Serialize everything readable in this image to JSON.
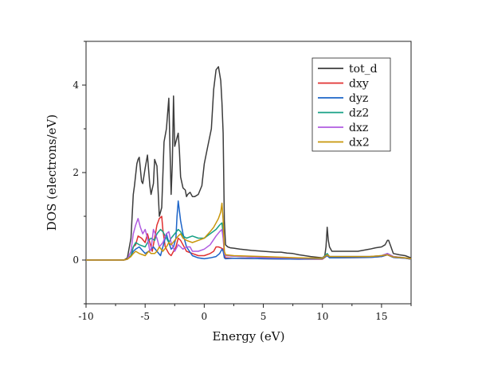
{
  "chart_data": {
    "type": "line",
    "title": "",
    "xlabel": "Energy (eV)",
    "ylabel": "DOS (electrons/eV)",
    "xlim": [
      -10,
      17.5
    ],
    "ylim": [
      -1,
      5
    ],
    "xticks": [
      -10,
      -5,
      0,
      5,
      10,
      15
    ],
    "yticks": [
      0,
      2,
      4
    ],
    "legend_position": "top-right",
    "series": [
      {
        "name": "tot_d",
        "color": "#3c3c3c",
        "x": [
          -10,
          -6.8,
          -6.5,
          -6.2,
          -6.0,
          -5.9,
          -5.7,
          -5.6,
          -5.5,
          -5.3,
          -5.2,
          -5.0,
          -4.8,
          -4.6,
          -4.5,
          -4.3,
          -4.2,
          -4.0,
          -3.8,
          -3.6,
          -3.4,
          -3.2,
          -3.0,
          -2.9,
          -2.8,
          -2.7,
          -2.6,
          -2.5,
          -2.3,
          -2.2,
          -2.1,
          -2.0,
          -1.8,
          -1.6,
          -1.5,
          -1.4,
          -1.2,
          -1.0,
          -0.8,
          -0.5,
          -0.2,
          0.0,
          0.3,
          0.6,
          0.8,
          1.0,
          1.2,
          1.4,
          1.5,
          1.6,
          1.7,
          1.8,
          1.9,
          2.0,
          2.2,
          2.5,
          3.0,
          4.0,
          5.0,
          6.0,
          6.5,
          7.0,
          7.5,
          8.0,
          9.0,
          10.0,
          10.2,
          10.3,
          10.4,
          10.5,
          10.6,
          10.8,
          11.0,
          12.0,
          13.0,
          14.0,
          14.5,
          15.0,
          15.3,
          15.5,
          15.6,
          15.8,
          16.0,
          16.5,
          17.0,
          17.5
        ],
        "values": [
          0,
          0,
          0.05,
          0.5,
          1.5,
          1.7,
          2.2,
          2.3,
          2.35,
          1.8,
          1.75,
          2.1,
          2.4,
          1.7,
          1.5,
          1.75,
          2.3,
          2.15,
          1.0,
          1.2,
          2.7,
          3.0,
          3.7,
          2.6,
          1.5,
          2.2,
          3.75,
          2.6,
          2.8,
          2.9,
          2.5,
          1.9,
          1.65,
          1.6,
          1.45,
          1.5,
          1.55,
          1.45,
          1.45,
          1.5,
          1.7,
          2.2,
          2.6,
          3.0,
          3.9,
          4.35,
          4.42,
          4.1,
          3.6,
          2.9,
          0.9,
          0.35,
          0.32,
          0.3,
          0.28,
          0.27,
          0.25,
          0.22,
          0.2,
          0.18,
          0.18,
          0.16,
          0.15,
          0.12,
          0.08,
          0.05,
          0.1,
          0.3,
          0.75,
          0.45,
          0.3,
          0.2,
          0.2,
          0.2,
          0.2,
          0.25,
          0.28,
          0.3,
          0.35,
          0.45,
          0.45,
          0.3,
          0.15,
          0.12,
          0.1,
          0.05
        ]
      },
      {
        "name": "dxy",
        "color": "#e03131",
        "x": [
          -10,
          -6.8,
          -6.5,
          -6.2,
          -6.0,
          -5.8,
          -5.6,
          -5.3,
          -5.0,
          -4.8,
          -4.6,
          -4.4,
          -4.2,
          -4.0,
          -3.8,
          -3.6,
          -3.5,
          -3.3,
          -3.0,
          -2.8,
          -2.6,
          -2.4,
          -2.2,
          -2.0,
          -1.5,
          -1.0,
          -0.5,
          0.0,
          0.5,
          0.8,
          1.0,
          1.2,
          1.4,
          1.6,
          1.7,
          1.8,
          2.5,
          5.0,
          8.0,
          10.0,
          10.4,
          10.6,
          11.0,
          14.0,
          15.0,
          15.5,
          16.0,
          17.0,
          17.5
        ],
        "values": [
          0,
          0,
          0.02,
          0.1,
          0.3,
          0.35,
          0.55,
          0.5,
          0.4,
          0.6,
          0.4,
          0.2,
          0.5,
          0.8,
          0.95,
          1.0,
          0.7,
          0.3,
          0.15,
          0.1,
          0.2,
          0.3,
          0.5,
          0.45,
          0.2,
          0.15,
          0.1,
          0.1,
          0.15,
          0.2,
          0.3,
          0.3,
          0.28,
          0.25,
          0.1,
          0.05,
          0.04,
          0.03,
          0.02,
          0.02,
          0.1,
          0.06,
          0.05,
          0.06,
          0.08,
          0.12,
          0.06,
          0.04,
          0.02
        ]
      },
      {
        "name": "dyz",
        "color": "#1c64c8",
        "x": [
          -10,
          -6.8,
          -6.5,
          -6.2,
          -6.0,
          -5.8,
          -5.5,
          -5.0,
          -4.7,
          -4.5,
          -4.3,
          -4.0,
          -3.7,
          -3.5,
          -3.2,
          -3.0,
          -2.8,
          -2.6,
          -2.4,
          -2.3,
          -2.2,
          -2.0,
          -1.8,
          -1.5,
          -1.0,
          -0.5,
          0.0,
          0.5,
          1.0,
          1.3,
          1.5,
          1.6,
          1.7,
          1.8,
          2.5,
          5.0,
          8.0,
          10.0,
          10.4,
          10.6,
          11.0,
          14.0,
          15.0,
          15.5,
          16.0,
          17.0,
          17.5
        ],
        "values": [
          0,
          0,
          0.02,
          0.1,
          0.2,
          0.25,
          0.3,
          0.15,
          0.2,
          0.25,
          0.3,
          0.2,
          0.1,
          0.3,
          0.6,
          0.4,
          0.25,
          0.3,
          0.5,
          1.0,
          1.35,
          0.9,
          0.6,
          0.3,
          0.1,
          0.05,
          0.03,
          0.05,
          0.08,
          0.15,
          0.25,
          0.2,
          0.05,
          0.03,
          0.04,
          0.03,
          0.02,
          0.03,
          0.1,
          0.05,
          0.05,
          0.06,
          0.08,
          0.12,
          0.06,
          0.04,
          0.02
        ]
      },
      {
        "name": "dz2",
        "color": "#16a085",
        "x": [
          -10,
          -6.8,
          -6.5,
          -6.2,
          -6.0,
          -5.8,
          -5.5,
          -5.0,
          -4.7,
          -4.5,
          -4.2,
          -4.0,
          -3.7,
          -3.5,
          -3.2,
          -3.0,
          -2.8,
          -2.5,
          -2.2,
          -2.0,
          -1.8,
          -1.5,
          -1.0,
          -0.5,
          0.0,
          0.5,
          1.0,
          1.3,
          1.5,
          1.6,
          1.7,
          1.8,
          2.5,
          5.0,
          8.0,
          10.0,
          10.4,
          10.6,
          11.0,
          14.0,
          15.0,
          15.5,
          16.0,
          17.0,
          17.5
        ],
        "values": [
          0,
          0,
          0.02,
          0.1,
          0.3,
          0.4,
          0.35,
          0.3,
          0.45,
          0.5,
          0.45,
          0.6,
          0.7,
          0.65,
          0.5,
          0.4,
          0.5,
          0.6,
          0.7,
          0.65,
          0.55,
          0.5,
          0.55,
          0.5,
          0.5,
          0.6,
          0.7,
          0.8,
          0.85,
          0.6,
          0.15,
          0.1,
          0.09,
          0.06,
          0.04,
          0.04,
          0.15,
          0.08,
          0.08,
          0.08,
          0.1,
          0.15,
          0.08,
          0.05,
          0.03
        ]
      },
      {
        "name": "dxz",
        "color": "#b05ce0",
        "x": [
          -10,
          -6.8,
          -6.5,
          -6.2,
          -6.0,
          -5.8,
          -5.6,
          -5.4,
          -5.2,
          -5.0,
          -4.8,
          -4.6,
          -4.5,
          -4.3,
          -4.0,
          -3.8,
          -3.5,
          -3.2,
          -3.0,
          -2.8,
          -2.5,
          -2.2,
          -2.0,
          -1.8,
          -1.5,
          -1.2,
          -1.0,
          -0.5,
          0.0,
          0.5,
          1.0,
          1.3,
          1.5,
          1.6,
          1.7,
          1.8,
          2.5,
          5.0,
          8.0,
          10.0,
          10.4,
          10.6,
          11.0,
          14.0,
          15.0,
          15.5,
          16.0,
          17.0,
          17.5
        ],
        "values": [
          0,
          0,
          0.02,
          0.2,
          0.6,
          0.8,
          0.95,
          0.75,
          0.6,
          0.7,
          0.5,
          0.2,
          0.25,
          0.7,
          0.5,
          0.3,
          0.4,
          0.6,
          0.65,
          0.4,
          0.2,
          0.35,
          0.3,
          0.25,
          0.3,
          0.3,
          0.2,
          0.2,
          0.25,
          0.35,
          0.55,
          0.65,
          0.7,
          0.5,
          0.15,
          0.1,
          0.09,
          0.06,
          0.04,
          0.04,
          0.12,
          0.08,
          0.08,
          0.08,
          0.1,
          0.15,
          0.08,
          0.05,
          0.03
        ]
      },
      {
        "name": "dx2",
        "color": "#c8960a",
        "x": [
          -10,
          -6.8,
          -6.5,
          -6.2,
          -6.0,
          -5.8,
          -5.5,
          -5.0,
          -4.7,
          -4.5,
          -4.2,
          -4.0,
          -3.8,
          -3.5,
          -3.2,
          -3.0,
          -2.8,
          -2.5,
          -2.2,
          -2.0,
          -1.8,
          -1.5,
          -1.0,
          -0.5,
          0.0,
          0.5,
          0.8,
          1.0,
          1.2,
          1.4,
          1.5,
          1.6,
          1.7,
          1.8,
          2.5,
          5.0,
          8.0,
          10.0,
          10.4,
          10.6,
          11.0,
          14.0,
          15.0,
          15.5,
          16.0,
          17.0,
          17.5
        ],
        "values": [
          0,
          0,
          0.02,
          0.08,
          0.15,
          0.2,
          0.15,
          0.1,
          0.2,
          0.15,
          0.15,
          0.2,
          0.3,
          0.2,
          0.3,
          0.4,
          0.35,
          0.45,
          0.55,
          0.6,
          0.5,
          0.45,
          0.4,
          0.45,
          0.5,
          0.65,
          0.75,
          0.85,
          0.95,
          1.1,
          1.3,
          0.9,
          0.2,
          0.12,
          0.1,
          0.08,
          0.05,
          0.04,
          0.12,
          0.08,
          0.08,
          0.08,
          0.1,
          0.12,
          0.07,
          0.05,
          0.03
        ]
      }
    ]
  }
}
